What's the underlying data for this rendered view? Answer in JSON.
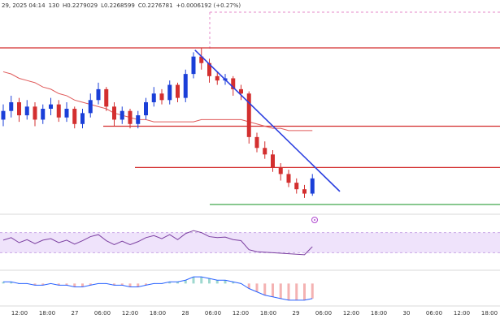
{
  "chart_data": {
    "type": "candlestick",
    "header": [
      "29, 2025 04:14",
      "130",
      "H0.2279029",
      "L0.2268599",
      "C0.2276781",
      "+0.0006192 (+0.27%)"
    ],
    "ylim": [
      0.2262,
      0.2359
    ],
    "open": [
      0.2304,
      0.2308,
      0.2312,
      0.2306,
      0.231,
      0.2304,
      0.2309,
      0.2311,
      0.2305,
      0.2309,
      0.2302,
      0.2307,
      0.2313,
      0.2318,
      0.231,
      0.2304,
      0.2308,
      0.2302,
      0.2306,
      0.2312,
      0.2316,
      0.2313,
      0.232,
      0.2314,
      0.2325,
      0.2333,
      0.233,
      0.2324,
      0.2322,
      0.2323,
      0.2318,
      0.2316,
      0.2296,
      0.2291,
      0.2288,
      0.2282,
      0.2279,
      0.2275,
      0.2272,
      0.227
    ],
    "high": [
      0.2311,
      0.2315,
      0.2314,
      0.2313,
      0.2312,
      0.2311,
      0.2314,
      0.2313,
      0.2312,
      0.231,
      0.2309,
      0.2316,
      0.2321,
      0.2319,
      0.2312,
      0.231,
      0.2309,
      0.2308,
      0.2314,
      0.2319,
      0.2318,
      0.2322,
      0.2321,
      0.2327,
      0.2335,
      0.2337,
      0.2332,
      0.2326,
      0.2325,
      0.2324,
      0.232,
      0.2317,
      0.2298,
      0.2294,
      0.229,
      0.2284,
      0.2281,
      0.2277,
      0.2274,
      0.2279
    ],
    "low": [
      0.2301,
      0.2305,
      0.2303,
      0.2304,
      0.2301,
      0.2302,
      0.2306,
      0.2303,
      0.2303,
      0.23,
      0.23,
      0.2305,
      0.2311,
      0.2308,
      0.2301,
      0.2302,
      0.23,
      0.23,
      0.2304,
      0.231,
      0.2311,
      0.2311,
      0.2312,
      0.2312,
      0.2323,
      0.2327,
      0.2321,
      0.232,
      0.232,
      0.2315,
      0.2313,
      0.2293,
      0.2289,
      0.2286,
      0.228,
      0.2276,
      0.2273,
      0.227,
      0.2268,
      0.2269
    ],
    "close": [
      0.2308,
      0.2312,
      0.2306,
      0.231,
      0.2304,
      0.2309,
      0.2311,
      0.2305,
      0.2309,
      0.2302,
      0.2307,
      0.2313,
      0.2318,
      0.231,
      0.2304,
      0.2308,
      0.2302,
      0.2306,
      0.2312,
      0.2316,
      0.2313,
      0.232,
      0.2314,
      0.2325,
      0.2333,
      0.233,
      0.2324,
      0.2322,
      0.2323,
      0.2318,
      0.2316,
      0.2296,
      0.2291,
      0.2288,
      0.2282,
      0.2279,
      0.2275,
      0.2272,
      0.227,
      0.2277
    ],
    "up_color": "#1a3fd8",
    "down_color": "#d32f2f",
    "ma": {
      "color": "#e05a5a",
      "values": [
        0.2326,
        0.2325,
        0.2323,
        0.2322,
        0.2321,
        0.2319,
        0.2318,
        0.2316,
        0.2315,
        0.2313,
        0.2312,
        0.2311,
        0.231,
        0.2309,
        0.2307,
        0.2306,
        0.2305,
        0.2304,
        0.2304,
        0.2303,
        0.2303,
        0.2303,
        0.2303,
        0.2303,
        0.2303,
        0.2304,
        0.2304,
        0.2304,
        0.2304,
        0.2304,
        0.2304,
        0.2303,
        0.2302,
        0.2301,
        0.23,
        0.23,
        0.2299,
        0.2299,
        0.2299,
        0.2299
      ]
    },
    "levels": [
      {
        "value": 0.2337,
        "color": "#d32f2f"
      },
      {
        "value": 0.2301,
        "color": "#d32f2f"
      },
      {
        "value": 0.2282,
        "color": "#d32f2f"
      },
      {
        "value": 0.2265,
        "color": "#2e9d3a"
      }
    ],
    "trendline": {
      "color": "#2b3fe0",
      "values": [
        0.2336,
        0.2271
      ]
    },
    "rsi": {
      "color": "#7b3fa0",
      "ylim": [
        0,
        100
      ],
      "band": [
        30,
        70
      ],
      "values": [
        55,
        60,
        50,
        56,
        48,
        55,
        58,
        50,
        55,
        47,
        54,
        62,
        66,
        54,
        46,
        53,
        46,
        52,
        60,
        64,
        58,
        66,
        56,
        68,
        74,
        70,
        62,
        60,
        61,
        56,
        54,
        36,
        32,
        31,
        30,
        29,
        28,
        27,
        26,
        42
      ]
    },
    "macd": {
      "color": "#2962ff",
      "ylim": [
        -0.0012,
        0.0006
      ],
      "values": [
        0.0001,
        0.0001,
        0.0,
        0.0,
        -0.0001,
        -0.0001,
        0.0,
        -0.0001,
        -0.0001,
        -0.0002,
        -0.0002,
        -0.0001,
        0.0,
        0.0,
        -0.0001,
        -0.0001,
        -0.0002,
        -0.0002,
        -0.0001,
        0.0,
        0.0,
        0.0001,
        0.0001,
        0.0002,
        0.0004,
        0.0004,
        0.0003,
        0.0002,
        0.0002,
        0.0001,
        0.0,
        -0.0003,
        -0.0005,
        -0.0007,
        -0.0008,
        -0.0009,
        -0.001,
        -0.001,
        -0.001,
        -0.0009
      ]
    },
    "xticks": [
      "12:00",
      "18:00",
      "27",
      "06:00",
      "12:00",
      "18:00",
      "28",
      "06:00",
      "12:00",
      "18:00",
      "29",
      "06:00",
      "12:00",
      "18:00",
      "30",
      "06:00",
      "12:00",
      "18:00"
    ]
  }
}
